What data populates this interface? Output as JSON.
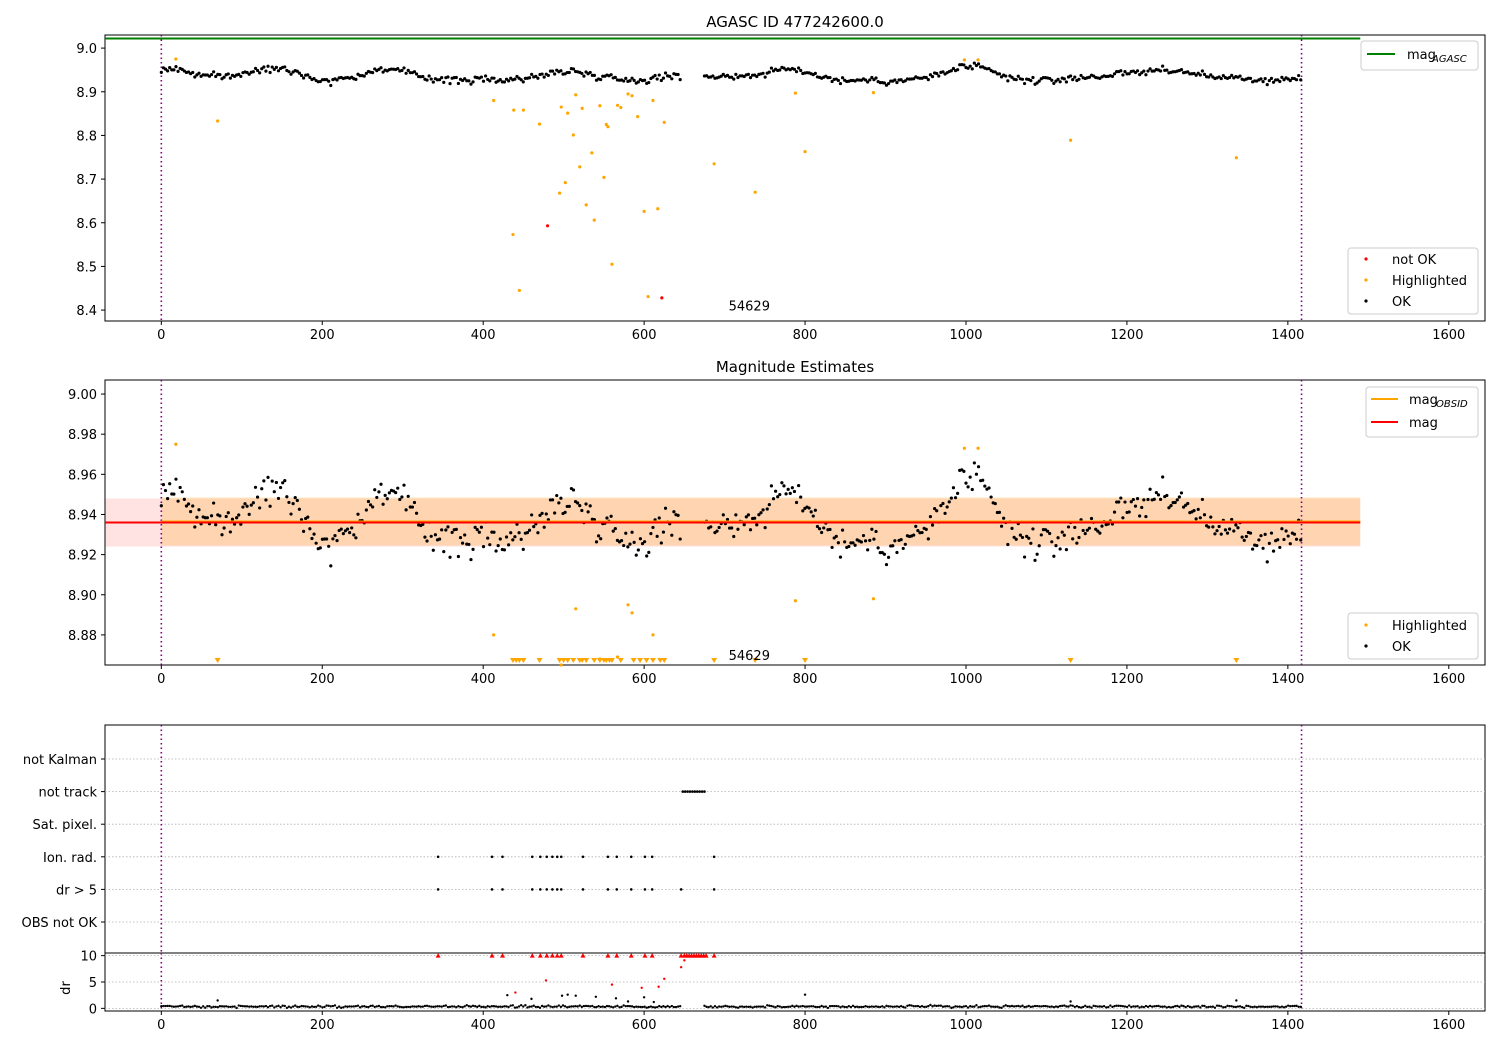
{
  "chart_data": [
    {
      "type": "scatter",
      "title": "AGASC ID 477242600.0",
      "xlim": [
        -70,
        1645
      ],
      "ylim": [
        8.375,
        9.03
      ],
      "x_ticks": [
        0,
        200,
        400,
        600,
        800,
        1000,
        1200,
        1400,
        1600
      ],
      "y_ticks": [
        8.4,
        8.5,
        8.6,
        8.7,
        8.8,
        8.9,
        9.0
      ],
      "y_tick_labels": [
        "8.4",
        "8.5",
        "8.6",
        "8.7",
        "8.8",
        "8.9",
        "9.0"
      ],
      "x_tick_labels": [
        "0",
        "200",
        "400",
        "600",
        "800",
        "1000",
        "1200",
        "1400",
        "1600"
      ],
      "annotation": {
        "text": "54629",
        "x": 705,
        "y": 8.395
      },
      "obs_bounds": [
        0,
        1417
      ],
      "reference_lines": [
        {
          "name": "mag_AGASC",
          "value": 9.022,
          "color": "#008000",
          "x_range": [
            -70,
            1490
          ]
        }
      ],
      "line_legend": {
        "placement": "upper right",
        "entries": [
          {
            "label": "mag",
            "sub": "AGASC",
            "color": "#008000"
          }
        ]
      },
      "point_legend": {
        "placement": "lower right",
        "entries": [
          {
            "label": "not OK",
            "color": "#ff0000"
          },
          {
            "label": "Highlighted",
            "color": "#ffa500"
          },
          {
            "label": "OK",
            "color": "#000000"
          }
        ]
      },
      "ok_series": {
        "name": "OK",
        "color": "#000000",
        "x_ranges": [
          [
            0,
            645
          ],
          [
            675,
            1417
          ]
        ],
        "step": 2.6,
        "baseline": 8.936,
        "noise": 0.009,
        "bumps": [
          {
            "x": 15,
            "amp": 0.018,
            "w": 15
          },
          {
            "x": 145,
            "amp": 0.02,
            "w": 25
          },
          {
            "x": 275,
            "amp": 0.015,
            "w": 15
          },
          {
            "x": 300,
            "amp": 0.007,
            "w": 12
          },
          {
            "x": 200,
            "amp": -0.012,
            "w": 20
          },
          {
            "x": 365,
            "amp": -0.009,
            "w": 25
          },
          {
            "x": 425,
            "amp": -0.008,
            "w": 25
          },
          {
            "x": 505,
            "amp": 0.012,
            "w": 18
          },
          {
            "x": 590,
            "amp": -0.01,
            "w": 18
          },
          {
            "x": 780,
            "amp": 0.016,
            "w": 22
          },
          {
            "x": 850,
            "amp": -0.01,
            "w": 20
          },
          {
            "x": 910,
            "amp": -0.012,
            "w": 25
          },
          {
            "x": 1000,
            "amp": 0.022,
            "w": 18
          },
          {
            "x": 1030,
            "amp": 0.01,
            "w": 12
          },
          {
            "x": 1090,
            "amp": -0.01,
            "w": 40
          },
          {
            "x": 1240,
            "amp": 0.013,
            "w": 35
          },
          {
            "x": 1370,
            "amp": -0.01,
            "w": 35
          }
        ]
      },
      "highlighted": {
        "name": "Highlighted",
        "color": "#ffa500",
        "points": [
          [
            18,
            8.975
          ],
          [
            70,
            8.833
          ],
          [
            413,
            8.88
          ],
          [
            437,
            8.573
          ],
          [
            438,
            8.858
          ],
          [
            445,
            8.445
          ],
          [
            450,
            8.858
          ],
          [
            470,
            8.826
          ],
          [
            495,
            8.668
          ],
          [
            497,
            8.865
          ],
          [
            502,
            8.692
          ],
          [
            505,
            8.851
          ],
          [
            512,
            8.801
          ],
          [
            515,
            8.893
          ],
          [
            520,
            8.728
          ],
          [
            523,
            8.862
          ],
          [
            528,
            8.641
          ],
          [
            535,
            8.76
          ],
          [
            538,
            8.606
          ],
          [
            545,
            8.868
          ],
          [
            550,
            8.704
          ],
          [
            553,
            8.825
          ],
          [
            555,
            8.82
          ],
          [
            560,
            8.505
          ],
          [
            567,
            8.869
          ],
          [
            571,
            8.864
          ],
          [
            580,
            8.895
          ],
          [
            585,
            8.891
          ],
          [
            592,
            8.843
          ],
          [
            600,
            8.626
          ],
          [
            605,
            8.431
          ],
          [
            611,
            8.88
          ],
          [
            617,
            8.632
          ],
          [
            625,
            8.83
          ],
          [
            687,
            8.735
          ],
          [
            738,
            8.67
          ],
          [
            788,
            8.897
          ],
          [
            800,
            8.763
          ],
          [
            885,
            8.898
          ],
          [
            998,
            8.973
          ],
          [
            1015,
            8.973
          ],
          [
            1130,
            8.789
          ],
          [
            1336,
            8.749
          ]
        ]
      },
      "not_ok": {
        "name": "not OK",
        "color": "#ff0000",
        "points": [
          [
            480,
            8.593
          ],
          [
            622,
            8.428
          ]
        ]
      }
    },
    {
      "type": "scatter",
      "title": "Magnitude Estimates",
      "xlim": [
        -70,
        1645
      ],
      "ylim": [
        8.865,
        9.007
      ],
      "x_ticks": [
        0,
        200,
        400,
        600,
        800,
        1000,
        1200,
        1400,
        1600
      ],
      "y_ticks": [
        8.88,
        8.9,
        8.92,
        8.94,
        8.96,
        8.98,
        9.0
      ],
      "y_tick_labels": [
        "8.88",
        "8.90",
        "8.92",
        "8.94",
        "8.96",
        "8.98",
        "9.00"
      ],
      "x_tick_labels": [
        "0",
        "200",
        "400",
        "600",
        "800",
        "1000",
        "1200",
        "1400",
        "1600"
      ],
      "annotation": {
        "text": "54629",
        "x": 705,
        "y": 8.8665
      },
      "obs_bounds": [
        0,
        1417
      ],
      "reference_lines": [
        {
          "name": "mag_OBSID",
          "value": 8.9365,
          "color": "#ffa500",
          "band": [
            8.9245,
            8.9485
          ],
          "band_color": "rgba(255,165,0,0.22)",
          "x_range": [
            0,
            1490
          ]
        },
        {
          "name": "mag",
          "value": 8.936,
          "color": "#ff0000",
          "band": [
            8.924,
            8.948
          ],
          "band_color": "rgba(255,0,0,0.11)",
          "x_range": [
            -70,
            1490
          ]
        }
      ],
      "line_legend": {
        "placement": "upper right",
        "entries": [
          {
            "label": "mag",
            "sub": "OBSID",
            "color": "#ffa500"
          },
          {
            "label": "mag",
            "sub": "",
            "color": "#ff0000"
          }
        ]
      },
      "point_legend": {
        "placement": "lower right",
        "entries": [
          {
            "label": "Highlighted",
            "color": "#ffa500"
          },
          {
            "label": "OK",
            "color": "#000000"
          }
        ]
      },
      "off_scale_markers": {
        "color": "#ffa500",
        "x": [
          70,
          437,
          441,
          445,
          450,
          470,
          495,
          500,
          505,
          512,
          520,
          523,
          528,
          538,
          545,
          550,
          553,
          557,
          560,
          571,
          587,
          595,
          603,
          611,
          620,
          625,
          687,
          738,
          800,
          1130,
          1336
        ]
      }
    },
    {
      "type": "scatter",
      "title": "",
      "xlim": [
        -70,
        1645
      ],
      "categories": [
        "not Kalman",
        "not track",
        "Sat. pixel.",
        "Ion. rad.",
        "dr > 5",
        "OBS not OK"
      ],
      "obs_bounds": [
        0,
        1417
      ],
      "flags": {
        "not track": [
          648,
          651,
          654,
          657,
          660,
          663,
          666,
          669,
          672,
          675
        ],
        "Ion. rad.": [
          344,
          411,
          424,
          461,
          471,
          479,
          486,
          492,
          497,
          524,
          555,
          566,
          584,
          601,
          610,
          687
        ],
        "dr > 5": [
          344,
          411,
          424,
          461,
          471,
          479,
          486,
          492,
          497,
          524,
          555,
          566,
          584,
          601,
          610,
          646,
          687
        ]
      }
    },
    {
      "type": "scatter",
      "title": "",
      "ylabel": "dr",
      "xlim": [
        -70,
        1645
      ],
      "ylim": [
        -0.5,
        10.5
      ],
      "y_ticks": [
        0,
        5,
        10
      ],
      "y_tick_labels": [
        "0",
        "5",
        "10"
      ],
      "x_ticks": [
        0,
        200,
        400,
        600,
        800,
        1000,
        1200,
        1400,
        1600
      ],
      "x_tick_labels": [
        "0",
        "200",
        "400",
        "600",
        "800",
        "1000",
        "1200",
        "1400",
        "1600"
      ],
      "obs_bounds": [
        0,
        1417
      ],
      "capped_markers": {
        "color": "#ff0000",
        "x": [
          344,
          411,
          424,
          461,
          471,
          479,
          486,
          492,
          497,
          524,
          555,
          566,
          584,
          601,
          610,
          646,
          650,
          653,
          656,
          659,
          662,
          665,
          668,
          671,
          674,
          677,
          687
        ]
      },
      "red_points": [
        [
          646,
          7.8
        ],
        [
          650,
          9.1
        ],
        [
          478,
          5.3
        ],
        [
          560,
          4.5
        ],
        [
          440,
          3.0
        ],
        [
          597,
          3.9
        ],
        [
          618,
          4.1
        ],
        [
          625,
          5.6
        ]
      ],
      "elevated_points": [
        [
          70,
          1.5
        ],
        [
          430,
          2.5
        ],
        [
          460,
          1.8
        ],
        [
          498,
          2.4
        ],
        [
          505,
          2.6
        ],
        [
          515,
          2.4
        ],
        [
          540,
          2.2
        ],
        [
          565,
          1.9
        ],
        [
          580,
          1.3
        ],
        [
          600,
          2.1
        ],
        [
          612,
          1.2
        ],
        [
          800,
          2.6
        ],
        [
          1130,
          1.3
        ],
        [
          1336,
          1.5
        ]
      ],
      "baseline_points": {
        "x_ranges": [
          [
            0,
            645
          ],
          [
            675,
            1417
          ]
        ],
        "step": 2.6,
        "level": 0.35
      }
    }
  ]
}
